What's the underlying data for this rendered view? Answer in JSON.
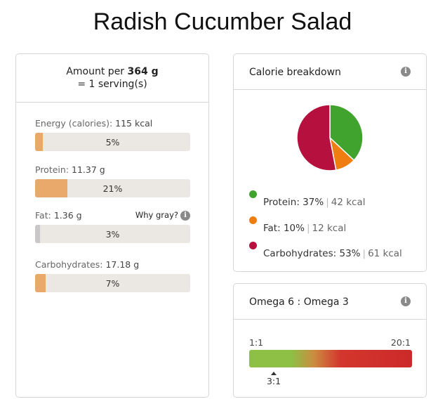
{
  "title": "Radish Cucumber Salad",
  "amount": {
    "prefix": "Amount per ",
    "weight": "364 g",
    "serving": "= 1 serving(s)"
  },
  "nutrients": [
    {
      "label": "Energy (calories):",
      "value": "115 kcal",
      "percent_text": "5%",
      "percent": 5,
      "color": "#e9a96b"
    },
    {
      "label": "Protein:",
      "value": "11.37 g",
      "percent_text": "21%",
      "percent": 21,
      "color": "#e9a96b"
    },
    {
      "label": "Fat:",
      "value": "1.36 g",
      "percent_text": "3%",
      "percent": 3,
      "color": "#c8c8c8",
      "note": "Why gray?"
    },
    {
      "label": "Carbohydrates:",
      "value": "17.18 g",
      "percent_text": "7%",
      "percent": 7,
      "color": "#e9a96b"
    }
  ],
  "calorie": {
    "title": "Calorie breakdown",
    "info_icon": "info-icon",
    "slices": [
      {
        "name": "Protein:",
        "pct_text": "37%",
        "kcal": "42 kcal",
        "value": 37,
        "color": "#3fa32e"
      },
      {
        "name": "Fat:",
        "pct_text": "10%",
        "kcal": "12 kcal",
        "value": 10,
        "color": "#ef7d10"
      },
      {
        "name": "Carbohydrates:",
        "pct_text": "53%",
        "kcal": "61 kcal",
        "value": 53,
        "color": "#b5103e"
      }
    ]
  },
  "omega": {
    "title": "Omega 6 : Omega 3",
    "info_icon": "info-icon",
    "min_label": "1:1",
    "max_label": "20:1",
    "marker_label": "3:1"
  },
  "chart_data": {
    "type": "pie",
    "categories": [
      "Protein",
      "Fat",
      "Carbohydrates"
    ],
    "values": [
      37,
      10,
      53
    ],
    "title": "Calorie breakdown"
  }
}
